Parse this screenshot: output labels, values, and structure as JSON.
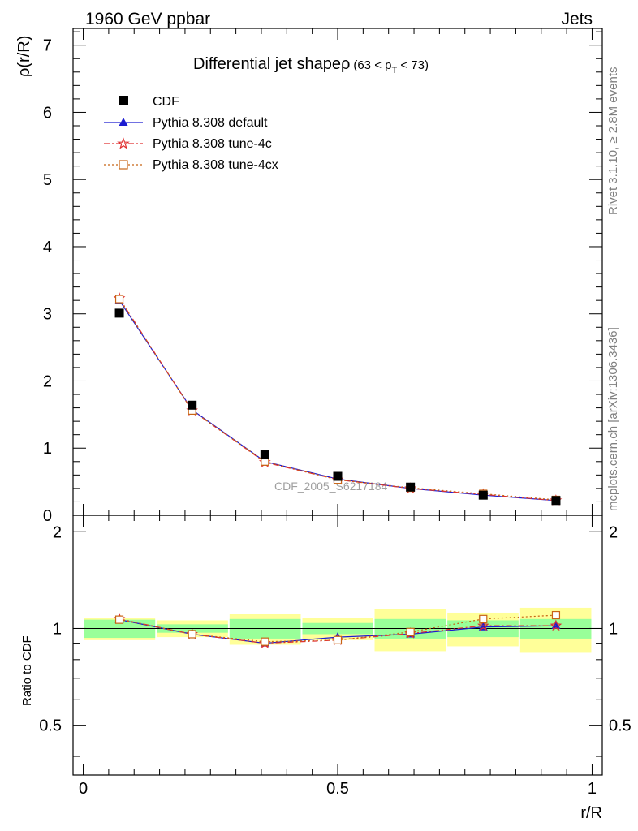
{
  "header": {
    "left": "1960 GeV ppbar",
    "right": "Jets",
    "side_top": "Rivet 3.1.10, ≥ 2.8M events",
    "side_bottom": "mcplots.cern.ch [arXiv:1306.3436]",
    "watermark": "CDF_2005_S6217184"
  },
  "chart_data": {
    "type": "line",
    "title_main": "Differential jet shapeρ",
    "title_range": "(63 < p",
    "title_sub": "T",
    "title_end": " < 73)",
    "xlabel": "r/R",
    "ylabel": "ρ(r/R)",
    "ratio_ylabel": "Ratio to CDF",
    "xlim": [
      -0.02,
      1.02
    ],
    "ylim": [
      0,
      7.25
    ],
    "ratio_ylim": [
      0.35,
      2.25
    ],
    "x_ticks": [
      "0",
      "0.5",
      "1"
    ],
    "y_ticks": [
      "0",
      "1",
      "2",
      "3",
      "4",
      "5",
      "6",
      "7"
    ],
    "ratio_y_ticks": [
      "0.5",
      "1",
      "2"
    ],
    "legend": {
      "position": "top-left",
      "entries": [
        "CDF",
        "Pythia 8.308 default",
        "Pythia 8.308 tune-4c",
        "Pythia 8.308 tune-4cx"
      ]
    },
    "bins": [
      0.0,
      0.143,
      0.286,
      0.429,
      0.571,
      0.714,
      0.857,
      1.0
    ],
    "x": [
      0.071,
      0.214,
      0.357,
      0.5,
      0.643,
      0.786,
      0.929
    ],
    "data": {
      "name": "CDF",
      "values": [
        3.01,
        1.64,
        0.9,
        0.58,
        0.42,
        0.3,
        0.22
      ],
      "ratio_band_inner": [
        0.065,
        0.03,
        0.07,
        0.04,
        0.07,
        0.06,
        0.07
      ],
      "ratio_band_outer": [
        0.08,
        0.06,
        0.11,
        0.08,
        0.15,
        0.12,
        0.16
      ]
    },
    "series": [
      {
        "name": "Pythia 8.308 default",
        "color": "#1c1cd1",
        "marker": "triangle",
        "dash": "",
        "values": [
          3.2,
          1.57,
          0.8,
          0.54,
          0.4,
          0.3,
          0.22
        ],
        "ratio": [
          1.065,
          0.96,
          0.9,
          0.94,
          0.96,
          1.01,
          1.02
        ]
      },
      {
        "name": "Pythia 8.308 tune-4c",
        "color": "#e03030",
        "marker": "star",
        "dash": "7,3,2,3",
        "values": [
          3.23,
          1.56,
          0.79,
          0.53,
          0.4,
          0.31,
          0.22
        ],
        "ratio": [
          1.07,
          0.96,
          0.9,
          0.92,
          0.965,
          1.02,
          1.02
        ]
      },
      {
        "name": "Pythia 8.308 tune-4cx",
        "color": "#c86414",
        "marker": "square",
        "dash": "2,3",
        "values": [
          3.22,
          1.56,
          0.8,
          0.53,
          0.41,
          0.32,
          0.23
        ],
        "ratio": [
          1.065,
          0.96,
          0.91,
          0.92,
          0.975,
          1.07,
          1.1
        ]
      }
    ]
  }
}
